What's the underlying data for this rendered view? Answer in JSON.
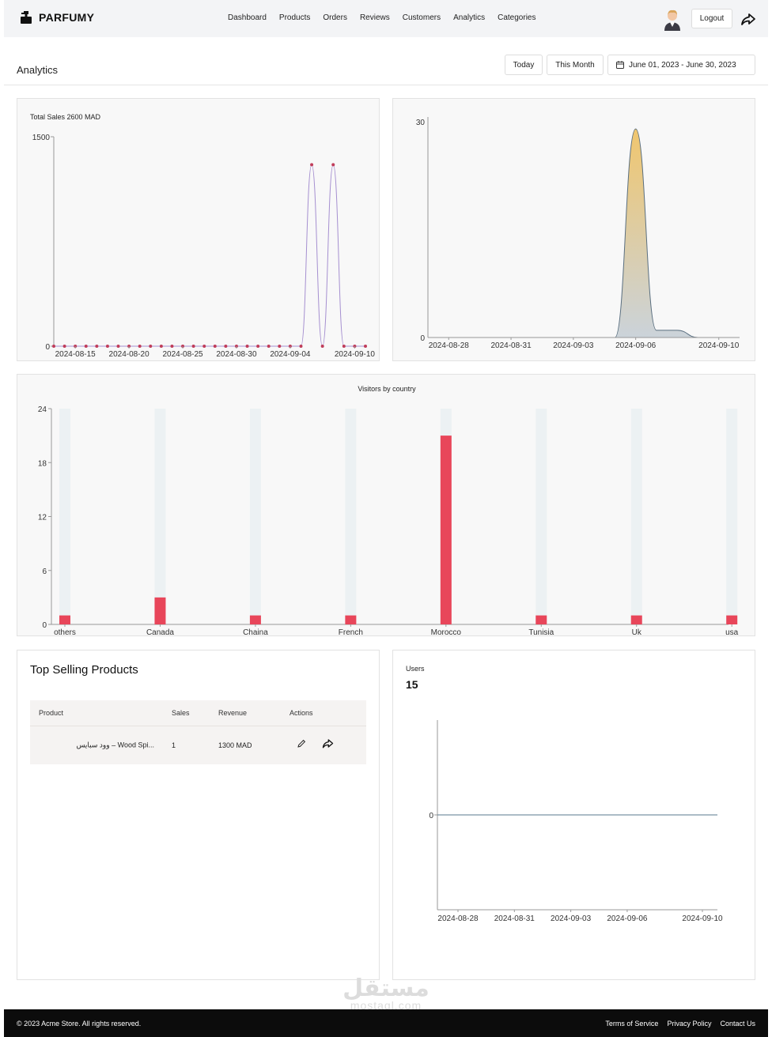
{
  "header": {
    "brand": "PARFUMY",
    "nav": [
      "Dashboard",
      "Products",
      "Orders",
      "Reviews",
      "Customers",
      "Analytics",
      "Categories"
    ],
    "logout_label": "Logout",
    "icons": {
      "logo": "perfume-bottle-icon",
      "share": "share-arrow-icon",
      "avatar": "user-avatar-icon"
    }
  },
  "toolbar": {
    "title": "Analytics",
    "today_label": "Today",
    "month_label": "This Month",
    "range_label": "June 01, 2023 - June 30, 2023"
  },
  "chart_data": [
    {
      "type": "line",
      "title": "Total Sales  2600  MAD",
      "x": [
        "2024-08-13",
        "2024-08-14",
        "2024-08-15",
        "2024-08-16",
        "2024-08-17",
        "2024-08-18",
        "2024-08-19",
        "2024-08-20",
        "2024-08-21",
        "2024-08-22",
        "2024-08-23",
        "2024-08-24",
        "2024-08-25",
        "2024-08-26",
        "2024-08-27",
        "2024-08-28",
        "2024-08-29",
        "2024-08-30",
        "2024-08-31",
        "2024-09-01",
        "2024-09-02",
        "2024-09-03",
        "2024-09-04",
        "2024-09-05",
        "2024-09-06",
        "2024-09-07",
        "2024-09-08",
        "2024-09-09",
        "2024-09-10",
        "2024-09-11"
      ],
      "values": [
        0,
        0,
        0,
        0,
        0,
        0,
        0,
        0,
        0,
        0,
        0,
        0,
        0,
        0,
        0,
        0,
        0,
        0,
        0,
        0,
        0,
        0,
        0,
        0,
        1300,
        0,
        1300,
        0,
        0,
        0
      ],
      "x_ticks": [
        "2024-08-15",
        "2024-08-20",
        "2024-08-25",
        "2024-08-30",
        "2024-09-04",
        "2024-09-10"
      ],
      "y_ticks": [
        "1500",
        "0"
      ],
      "ylim": [
        0,
        1500
      ],
      "line_color": "#a58fd0",
      "point_color": "#c03d5a"
    },
    {
      "type": "area",
      "x": [
        "2024-08-27",
        "2024-08-28",
        "2024-08-29",
        "2024-08-30",
        "2024-08-31",
        "2024-09-01",
        "2024-09-02",
        "2024-09-03",
        "2024-09-04",
        "2024-09-05",
        "2024-09-06",
        "2024-09-07",
        "2024-09-08",
        "2024-09-09",
        "2024-09-10",
        "2024-09-11"
      ],
      "values": [
        0,
        0,
        0,
        0,
        0,
        0,
        0,
        0,
        0,
        0,
        29,
        1,
        1,
        0,
        0,
        0
      ],
      "x_ticks": [
        "2024-08-28",
        "2024-08-31",
        "2024-09-03",
        "2024-09-06",
        "2024-09-10"
      ],
      "y_ticks": [
        "30",
        "0"
      ],
      "ylim": [
        0,
        30
      ],
      "gradient_top": "#f0c66e",
      "gradient_bottom": "#cbd3da",
      "line_color": "#5a6f80"
    },
    {
      "type": "bar",
      "title": "Visitors by country",
      "categories": [
        "others",
        "Canada",
        "Chaina",
        "French",
        "Morocco",
        "Tunisia",
        "Uk",
        "usa"
      ],
      "values": [
        1,
        3,
        1,
        1,
        21,
        1,
        1,
        1
      ],
      "y_ticks": [
        "24",
        "18",
        "12",
        "6",
        "0"
      ],
      "ylim": [
        0,
        24
      ],
      "bar_color": "#e8465a",
      "track_color": "#ecf1f3"
    },
    {
      "type": "line",
      "x": [
        "2024-08-28",
        "2024-08-31",
        "2024-09-03",
        "2024-09-06",
        "2024-09-10"
      ],
      "values": [
        0,
        0,
        0,
        0,
        0
      ],
      "x_ticks": [
        "2024-08-28",
        "2024-08-31",
        "2024-09-03",
        "2024-09-06",
        "2024-09-10"
      ],
      "y_ticks": [
        "0"
      ],
      "line_color": "#5a7a8c"
    }
  ],
  "top_selling": {
    "title": "Top Selling Products",
    "columns": [
      "Product",
      "Sales",
      "Revenue",
      "Actions"
    ],
    "rows": [
      {
        "product": "وود سبايس – Wood Spi...",
        "sales": "1",
        "revenue": "1300 MAD"
      }
    ],
    "icons": {
      "edit": "pencil-icon",
      "share": "share-arrow-icon"
    }
  },
  "users": {
    "label": "Users",
    "value": "15"
  },
  "footer": {
    "copyright": "© 2023 Acme Store. All rights reserved.",
    "links": [
      "Terms of Service",
      "Privacy Policy",
      "Contact Us"
    ]
  },
  "watermark": {
    "arabic": "مستقل",
    "latin": "mostaql.com"
  }
}
